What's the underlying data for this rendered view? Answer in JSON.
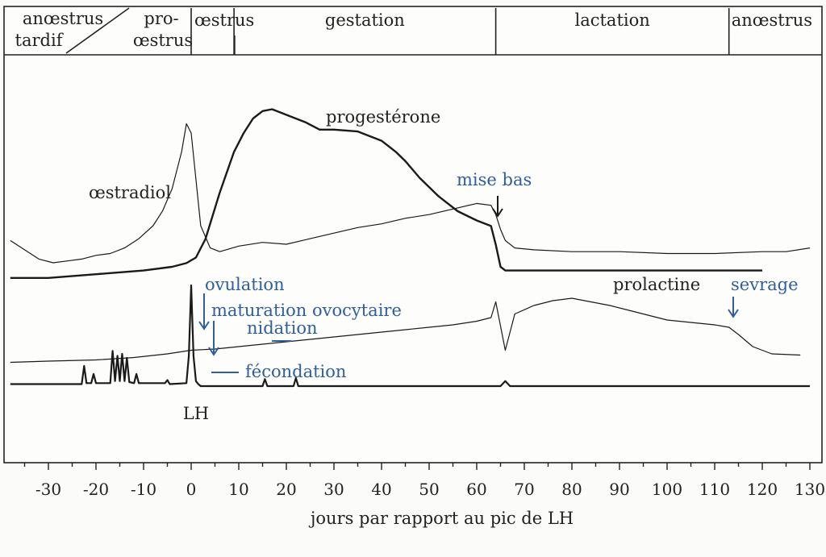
{
  "chart_data": {
    "type": "line",
    "xlabel": "jours par rapport au pic de LH",
    "ylabel": "",
    "xlim": [
      -38,
      135
    ],
    "x_ticks": [
      -30,
      -20,
      -10,
      0,
      10,
      20,
      30,
      40,
      50,
      60,
      70,
      80,
      90,
      100,
      110,
      120,
      130
    ],
    "grid": false,
    "phases": [
      {
        "label": "anœstrus tardif",
        "line1": "anœstrus",
        "line2": "tardif",
        "start": -38,
        "end": -18
      },
      {
        "label": "pro-œstrus",
        "line1": "pro-",
        "line2": "œstrus",
        "start": -18,
        "end": 0
      },
      {
        "label": "œstrus",
        "line1": "œstrus",
        "line2": "",
        "start": 0,
        "end": 9
      },
      {
        "label": "gestation",
        "line1": "gestation",
        "line2": "",
        "start": 9,
        "end": 64
      },
      {
        "label": "lactation",
        "line1": "lactation",
        "line2": "",
        "start": 64,
        "end": 113
      },
      {
        "label": "anœstrus",
        "line1": "anœstrus",
        "line2": "",
        "start": 113,
        "end": 135
      }
    ],
    "series": [
      {
        "name": "œstradiol",
        "x": [
          -38,
          -35,
          -32,
          -29,
          -26,
          -23,
          -20,
          -17,
          -14,
          -11,
          -8,
          -6,
          -4,
          -2,
          -1,
          0,
          1,
          2,
          4,
          6,
          10,
          15,
          20,
          25,
          30,
          35,
          40,
          45,
          50,
          55,
          60,
          63,
          64,
          65,
          66,
          68,
          72,
          80,
          90,
          100,
          110,
          120,
          125,
          130,
          135
        ],
        "y": [
          0.12,
          0.07,
          0.02,
          0.0,
          0.01,
          0.02,
          0.04,
          0.05,
          0.08,
          0.13,
          0.2,
          0.28,
          0.4,
          0.6,
          0.75,
          0.7,
          0.45,
          0.2,
          0.08,
          0.06,
          0.09,
          0.11,
          0.1,
          0.13,
          0.16,
          0.19,
          0.21,
          0.24,
          0.26,
          0.29,
          0.32,
          0.31,
          0.26,
          0.18,
          0.12,
          0.08,
          0.07,
          0.06,
          0.06,
          0.05,
          0.05,
          0.06,
          0.06,
          0.08,
          0.12
        ]
      },
      {
        "name": "progestérone",
        "x": [
          -38,
          -30,
          -20,
          -10,
          -4,
          -1,
          1,
          3,
          6,
          9,
          11,
          13,
          15,
          17,
          19,
          21,
          24,
          27,
          30,
          35,
          40,
          43,
          45,
          48,
          52,
          56,
          60,
          63,
          64,
          65,
          66,
          70,
          80,
          90,
          100,
          110,
          120,
          135
        ],
        "y": [
          -0.06,
          -0.06,
          -0.04,
          -0.02,
          0.0,
          0.02,
          0.05,
          0.15,
          0.4,
          0.62,
          0.72,
          0.8,
          0.84,
          0.85,
          0.83,
          0.81,
          0.78,
          0.74,
          0.74,
          0.73,
          0.68,
          0.62,
          0.57,
          0.48,
          0.38,
          0.3,
          0.25,
          0.22,
          0.12,
          0.0,
          -0.02,
          -0.02,
          -0.02,
          -0.02,
          -0.02,
          -0.02,
          -0.02,
          -0.02
        ]
      },
      {
        "name": "prolactine",
        "x": [
          -38,
          -30,
          -20,
          -12,
          -5,
          0,
          5,
          10,
          20,
          30,
          40,
          50,
          55,
          60,
          63,
          64,
          65,
          66,
          68,
          72,
          76,
          80,
          84,
          88,
          92,
          96,
          100,
          105,
          110,
          113,
          115,
          118,
          122,
          128,
          135
        ],
        "y": [
          0.05,
          0.06,
          0.07,
          0.09,
          0.12,
          0.15,
          0.16,
          0.18,
          0.22,
          0.26,
          0.3,
          0.34,
          0.36,
          0.39,
          0.42,
          0.55,
          0.35,
          0.15,
          0.45,
          0.52,
          0.56,
          0.58,
          0.55,
          0.52,
          0.48,
          0.44,
          0.4,
          0.38,
          0.36,
          0.34,
          0.28,
          0.18,
          0.12,
          0.11,
          0.12
        ]
      },
      {
        "name": "LH",
        "x": [
          -38,
          -23,
          -22.5,
          -22,
          -21,
          -20.5,
          -20,
          -17,
          -16.5,
          -16,
          -15.5,
          -15,
          -14.5,
          -14,
          -13.5,
          -13,
          -12,
          -11.5,
          -11,
          -5.5,
          -5,
          -4.5,
          -1,
          -0.5,
          0,
          0.5,
          1,
          1.5,
          2,
          15,
          15.5,
          16,
          21.5,
          22,
          22.5,
          65,
          66,
          67,
          130,
          133,
          135
        ],
        "y": [
          0.02,
          0.02,
          0.2,
          0.03,
          0.03,
          0.12,
          0.03,
          0.03,
          0.35,
          0.05,
          0.3,
          0.05,
          0.32,
          0.05,
          0.28,
          0.04,
          0.03,
          0.12,
          0.03,
          0.03,
          0.06,
          0.02,
          0.03,
          0.3,
          1.0,
          0.3,
          0.05,
          0.02,
          0.0,
          0.0,
          0.07,
          0.0,
          0.0,
          0.08,
          0.0,
          0.0,
          0.05,
          0.0,
          0.0,
          0.08,
          0.04
        ]
      }
    ],
    "curve_labels": [
      {
        "text": "œstradiol",
        "x": -25,
        "row": "upper"
      },
      {
        "text": "progestérone",
        "x": 29,
        "row": "upper"
      },
      {
        "text": "prolactine",
        "x": 82,
        "row": "lower"
      },
      {
        "text": "LH",
        "x": 1,
        "row": "lower"
      }
    ],
    "annotations": [
      {
        "text": "mise bas",
        "x": 64,
        "arrow": true
      },
      {
        "text": "ovulation",
        "x": 2.5,
        "arrow": true
      },
      {
        "text": "maturation ovocytaire",
        "x": 4.5,
        "arrow": true
      },
      {
        "text": "nidation",
        "x": 18,
        "arrow": false
      },
      {
        "text": "fécondation",
        "x": 7,
        "arrow": false
      },
      {
        "text": "sevrage",
        "x": 113.5,
        "arrow": true
      }
    ],
    "colors": {
      "curves": "#1a1a1a",
      "events": "#2f5e9e",
      "background": "#fbfbf9"
    }
  }
}
